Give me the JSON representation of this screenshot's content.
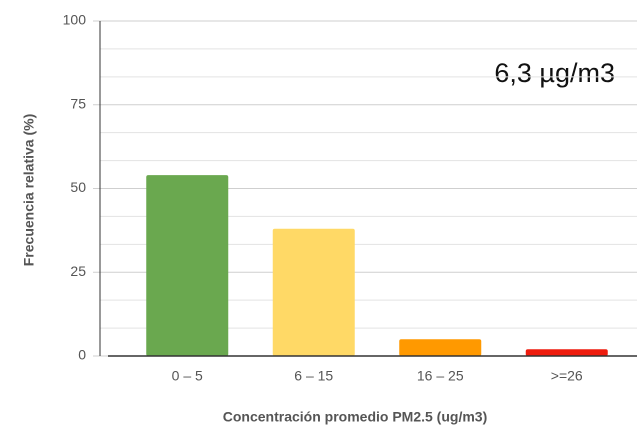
{
  "chart_data": {
    "type": "bar",
    "annotation": "6,3 µg/m3",
    "x_label": "Concentración promedio PM2.5 (ug/m3)",
    "y_label": "Frecuencia relativa (%)",
    "categories": [
      "0 – 5",
      "6 – 15",
      "16 – 25",
      ">=26"
    ],
    "values": [
      54,
      38,
      5,
      2
    ],
    "colors": [
      "#6aa84f",
      "#ffd966",
      "#ff9900",
      "#ee1c0e"
    ],
    "ylim": [
      0,
      100
    ],
    "yticks": [
      0,
      25,
      50,
      75,
      100
    ],
    "grid": true
  }
}
